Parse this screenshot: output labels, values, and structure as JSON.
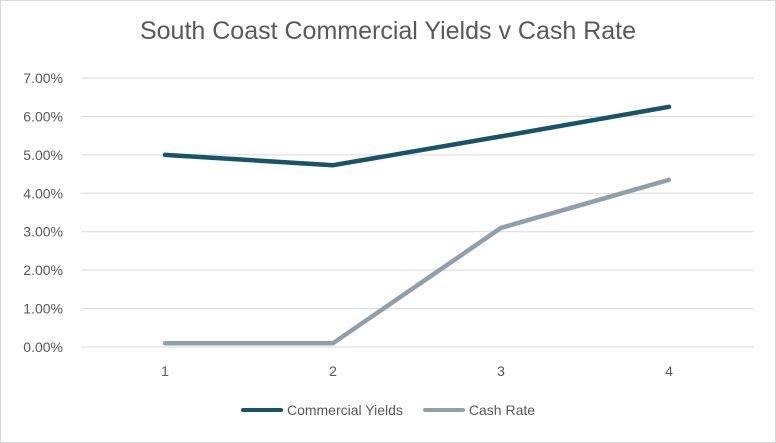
{
  "chart_data": {
    "type": "line",
    "title": "South Coast Commercial Yields v Cash Rate",
    "xlabel": "",
    "ylabel": "",
    "x": [
      "1",
      "2",
      "3",
      "4"
    ],
    "ylim": [
      0,
      0.07
    ],
    "y_ticks": [
      "0.00%",
      "1.00%",
      "2.00%",
      "3.00%",
      "4.00%",
      "5.00%",
      "6.00%",
      "7.00%"
    ],
    "grid": true,
    "legend": "bottom",
    "series": [
      {
        "name": "Commercial Yields",
        "color": "#17536b",
        "values": [
          0.05,
          0.0473,
          0.0548,
          0.0625
        ]
      },
      {
        "name": "Cash Rate",
        "color": "#8ea0ad",
        "values": [
          0.001,
          0.001,
          0.031,
          0.0435
        ]
      }
    ]
  }
}
